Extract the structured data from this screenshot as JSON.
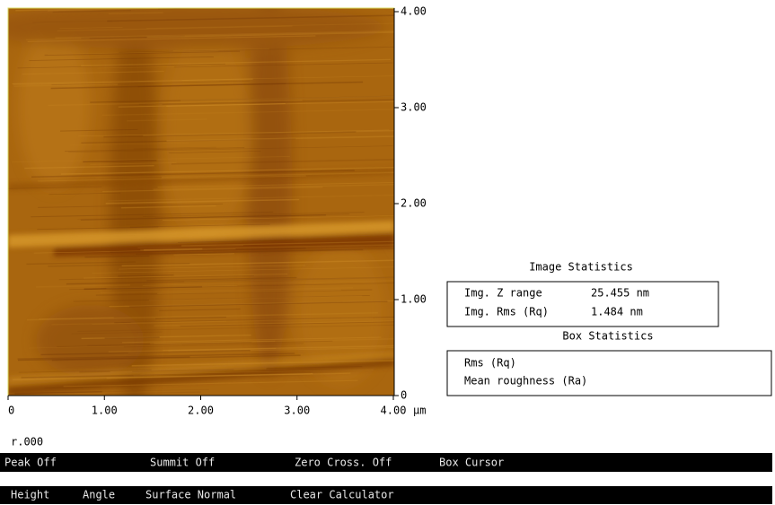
{
  "image": {
    "y_axis_ticks": [
      "4.00",
      "3.00",
      "2.00",
      "1.00",
      "0"
    ],
    "x_axis_ticks": [
      "0",
      "1.00",
      "2.00",
      "3.00",
      "4.00"
    ],
    "x_unit": "µm"
  },
  "image_statistics": {
    "title": "Image Statistics",
    "rows": [
      [
        "Img. Z range",
        "25.455 nm"
      ],
      [
        "Img. Rms (Rq)",
        "1.484 nm"
      ]
    ]
  },
  "box_statistics": {
    "title": "Box Statistics",
    "rows": [
      "Rms (Rq)",
      "Mean roughness (Ra)"
    ]
  },
  "status": "r.000",
  "toolbar_1": [
    "Peak Off",
    "Summit Off",
    "Zero Cross. Off",
    "Box Cursor"
  ],
  "toolbar_2": [
    "Height",
    "Angle",
    "Surface Normal",
    "Clear Calculator"
  ]
}
